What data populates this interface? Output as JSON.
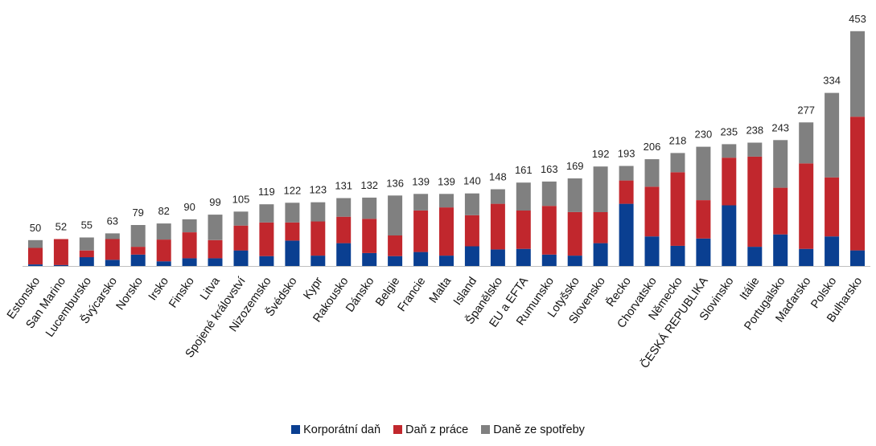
{
  "chart_data": {
    "type": "bar",
    "stacked": true,
    "categories": [
      "Estonsko",
      "San Marino",
      "Lucembursko",
      "Švýcarsko",
      "Norsko",
      "Irsko",
      "Finsko",
      "Litva",
      "Spojené království",
      "Nizozemsko",
      "Švédsko",
      "Kypr",
      "Rakousko",
      "Dánsko",
      "Belgie",
      "Francie",
      "Malta",
      "Island",
      "Španělsko",
      "EU a EFTA",
      "Rumunsko",
      "Lotyšsko",
      "Slovensko",
      "Řecko",
      "Chorvatsko",
      "Německo",
      "ČESKÁ REPUBLIKA",
      "Slovinsko",
      "Itálie",
      "Portugalsko",
      "Maďarsko",
      "Polsko",
      "Bulharsko"
    ],
    "totals": [
      50,
      52,
      55,
      63,
      79,
      82,
      90,
      99,
      105,
      119,
      122,
      123,
      131,
      132,
      136,
      139,
      139,
      140,
      148,
      161,
      163,
      169,
      192,
      193,
      206,
      218,
      230,
      235,
      238,
      243,
      277,
      334,
      453
    ],
    "series": [
      {
        "name": "Korporátní daň",
        "color": "#0a3f91",
        "values": [
          3,
          2,
          17,
          12,
          22,
          9,
          15,
          15,
          30,
          19,
          49,
          20,
          44,
          25,
          19,
          27,
          20,
          38,
          32,
          33,
          22,
          20,
          44,
          120,
          57,
          39,
          53,
          117,
          37,
          61,
          33,
          57,
          30
        ]
      },
      {
        "name": "Daň z práce",
        "color": "#c1272d",
        "values": [
          32,
          50,
          13,
          40,
          15,
          42,
          50,
          35,
          48,
          65,
          35,
          66,
          51,
          66,
          40,
          80,
          93,
          60,
          88,
          74,
          94,
          84,
          60,
          45,
          96,
          142,
          74,
          92,
          174,
          90,
          165,
          114,
          258
        ]
      },
      {
        "name": "Daně ze spotřeby",
        "color": "#808080",
        "values": [
          15,
          0,
          25,
          11,
          42,
          31,
          25,
          49,
          27,
          35,
          38,
          37,
          36,
          41,
          77,
          32,
          26,
          42,
          28,
          54,
          47,
          65,
          88,
          28,
          53,
          37,
          103,
          26,
          27,
          92,
          79,
          163,
          165
        ]
      }
    ],
    "ylim": [
      0,
      470
    ],
    "xlabel": "",
    "ylabel": "",
    "grid": false,
    "legend_position": "bottom"
  }
}
